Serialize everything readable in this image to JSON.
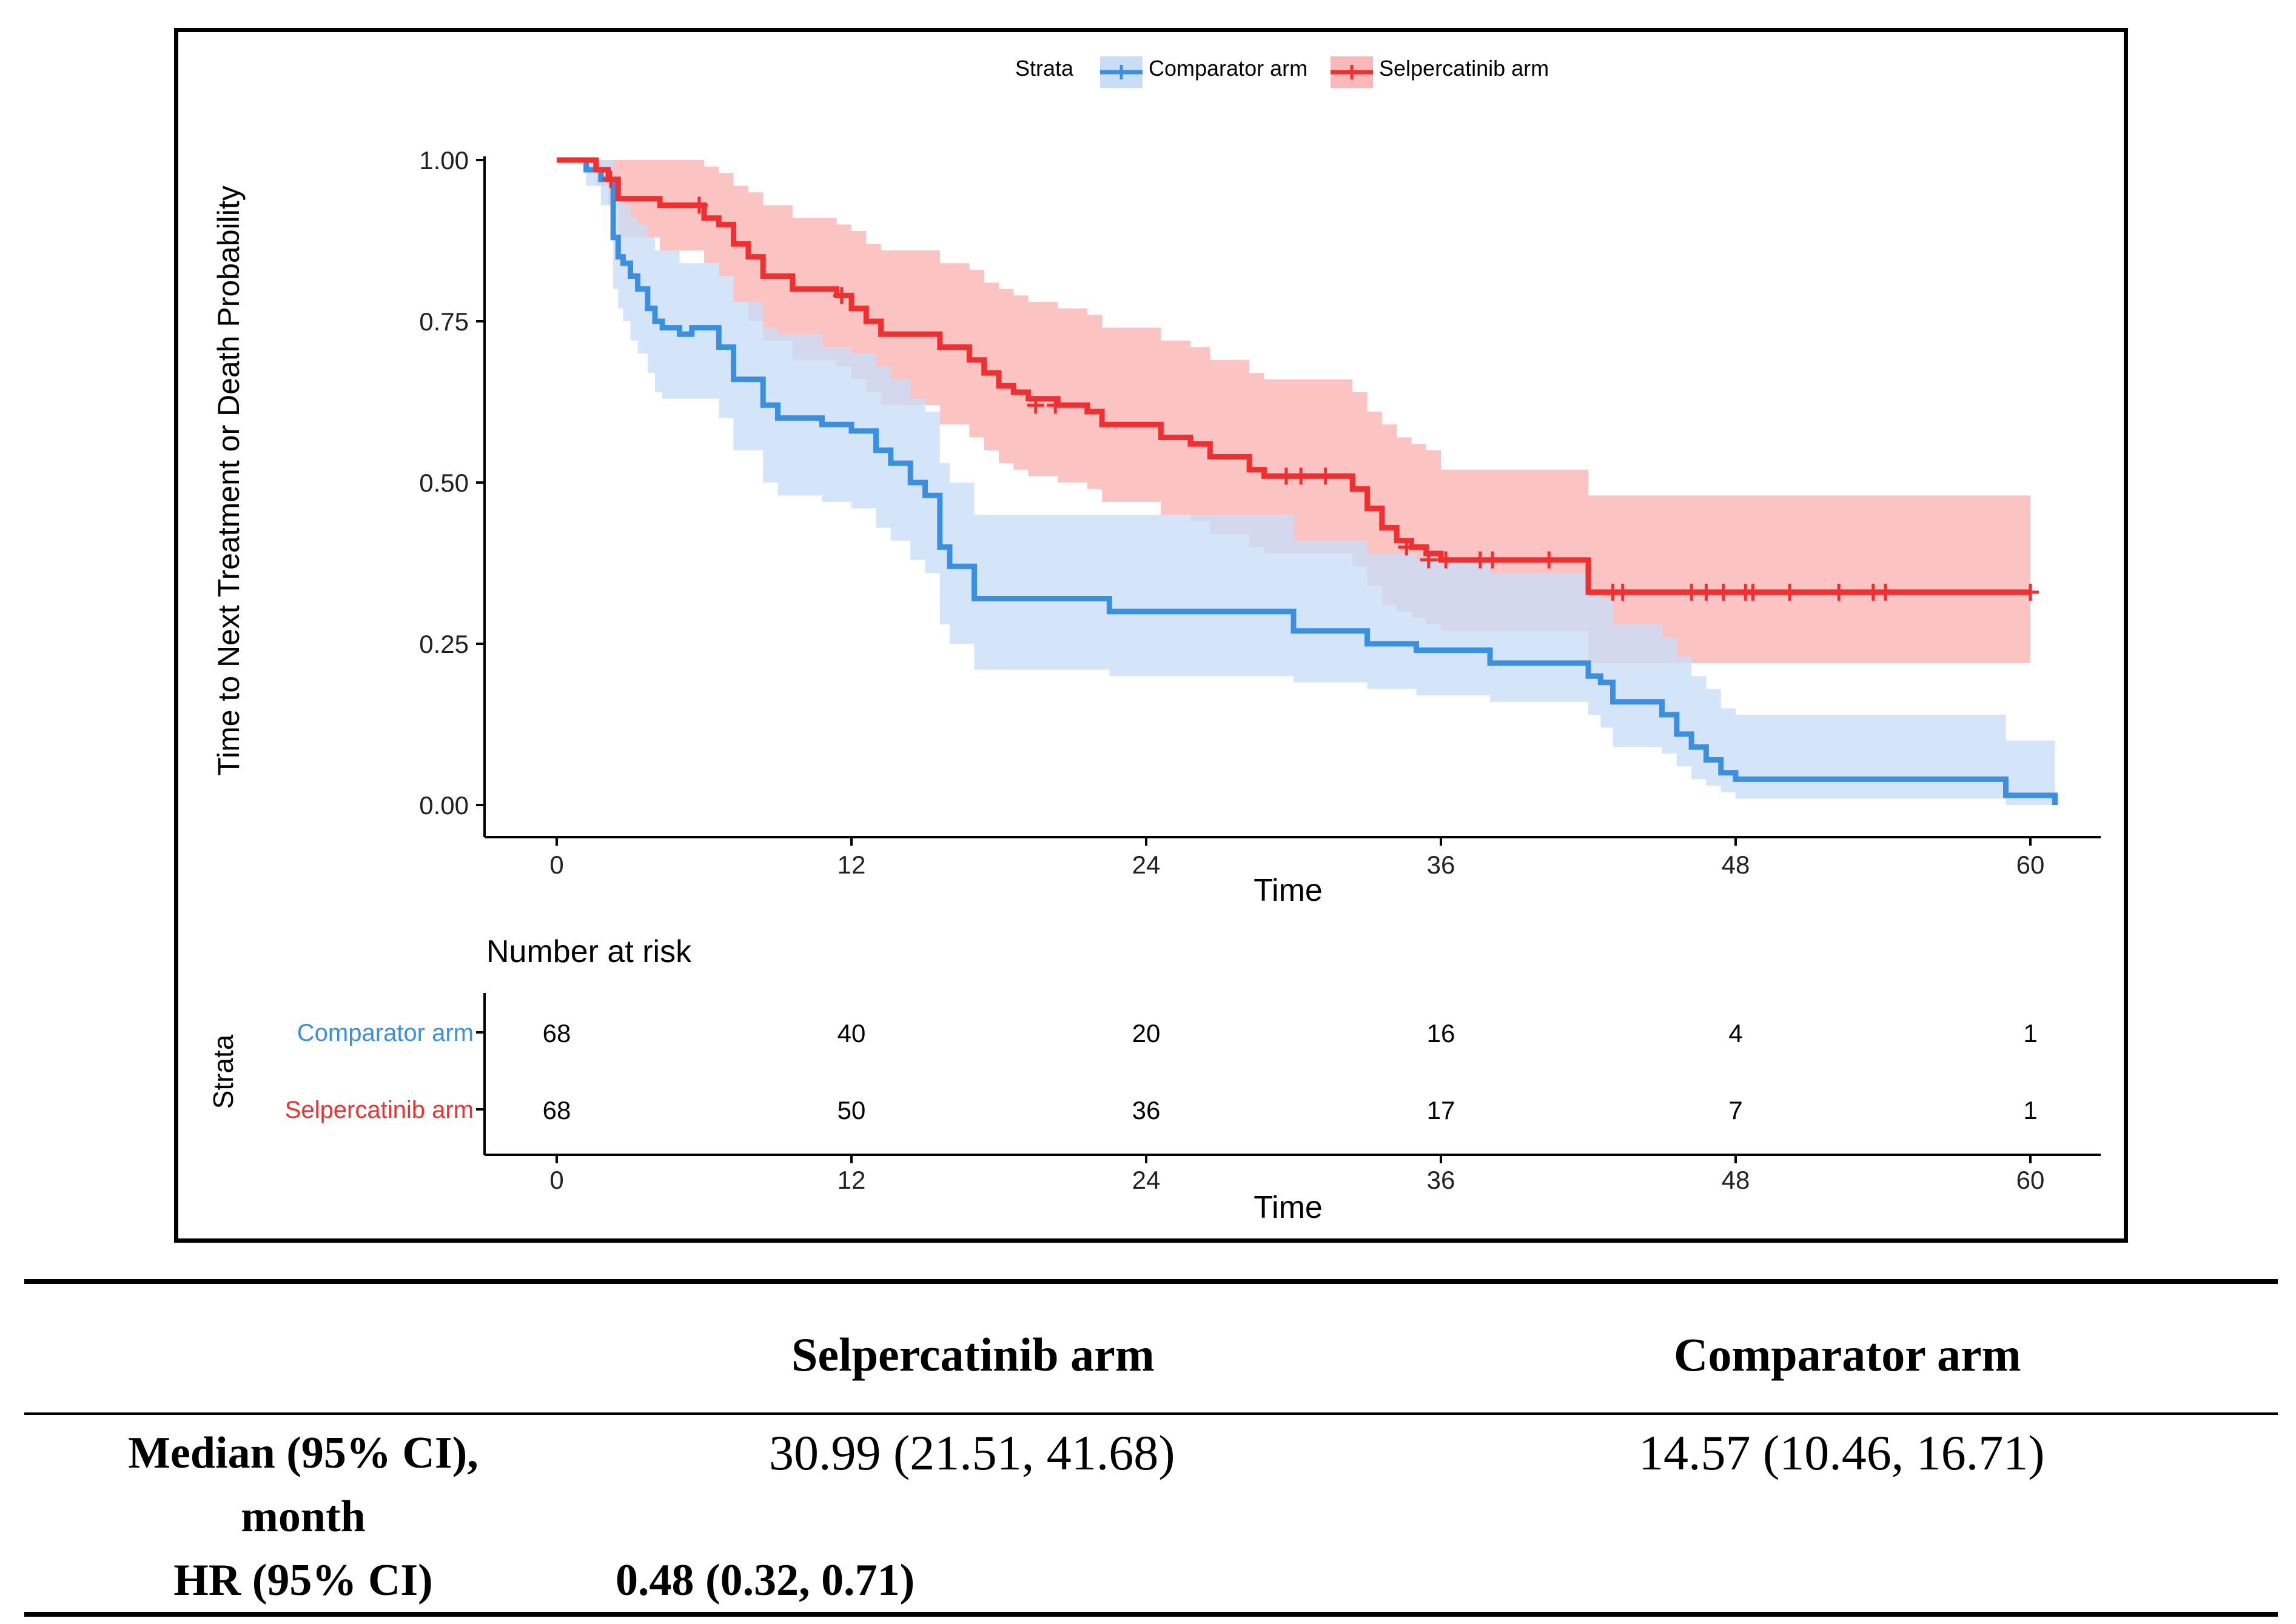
{
  "chart_data": {
    "type": "line",
    "subtype": "kaplan-meier",
    "legend": {
      "title": "Strata",
      "placement": "top-center",
      "entries": [
        "Comparator arm",
        "Selpercatinib arm"
      ]
    },
    "ylabel": "Time to Next Treatment or Death Probability",
    "xlabel": "Time",
    "xlim": [
      0,
      61
    ],
    "ylim": [
      0,
      1
    ],
    "x_ticks": [
      "0",
      "12",
      "24",
      "36",
      "48",
      "60"
    ],
    "x_tick_values": [
      0,
      12,
      24,
      36,
      48,
      60
    ],
    "y_ticks": [
      "0.00",
      "0.25",
      "0.50",
      "0.75",
      "1.00"
    ],
    "y_tick_values": [
      0,
      0.25,
      0.5,
      0.75,
      1.0
    ],
    "colors": {
      "comparator": "#3b8fe0",
      "selpercatinib": "#f03030",
      "comparator_band": "#c9ddf7",
      "selpercatinib_band": "#fbb8b8"
    },
    "series": [
      {
        "name": "Comparator arm",
        "x": [
          0,
          1.2,
          1.8,
          2.3,
          2.5,
          2.7,
          3.0,
          3.3,
          3.7,
          4.0,
          4.3,
          5.0,
          5.5,
          6.6,
          7.2,
          8.4,
          9.0,
          10.8,
          12.0,
          13.0,
          13.6,
          14.4,
          15.0,
          15.6,
          16.0,
          17.0,
          22.5,
          30.0,
          33.0,
          35.0,
          38.0,
          42.0,
          42.5,
          43.0,
          45.0,
          45.6,
          46.2,
          46.8,
          47.4,
          48.0,
          59.0,
          61.0
        ],
        "y": [
          1.0,
          0.985,
          0.97,
          0.88,
          0.85,
          0.84,
          0.82,
          0.8,
          0.77,
          0.75,
          0.74,
          0.73,
          0.74,
          0.71,
          0.66,
          0.62,
          0.6,
          0.59,
          0.58,
          0.55,
          0.53,
          0.5,
          0.48,
          0.4,
          0.37,
          0.32,
          0.3,
          0.27,
          0.25,
          0.24,
          0.22,
          0.2,
          0.19,
          0.16,
          0.14,
          0.11,
          0.09,
          0.07,
          0.05,
          0.04,
          0.015,
          0.0
        ],
        "ci_upper": [
          1.0,
          1.0,
          1.0,
          0.96,
          0.94,
          0.93,
          0.91,
          0.9,
          0.88,
          0.86,
          0.86,
          0.84,
          0.84,
          0.82,
          0.78,
          0.74,
          0.73,
          0.71,
          0.7,
          0.68,
          0.66,
          0.63,
          0.61,
          0.53,
          0.5,
          0.45,
          0.45,
          0.41,
          0.39,
          0.38,
          0.36,
          0.33,
          0.32,
          0.28,
          0.26,
          0.23,
          0.2,
          0.18,
          0.15,
          0.14,
          0.1,
          0.1
        ],
        "ci_lower": [
          1.0,
          0.96,
          0.93,
          0.8,
          0.77,
          0.75,
          0.72,
          0.7,
          0.67,
          0.64,
          0.63,
          0.63,
          0.63,
          0.6,
          0.55,
          0.5,
          0.48,
          0.47,
          0.46,
          0.43,
          0.41,
          0.38,
          0.36,
          0.28,
          0.25,
          0.21,
          0.2,
          0.19,
          0.18,
          0.17,
          0.16,
          0.14,
          0.12,
          0.09,
          0.08,
          0.06,
          0.04,
          0.03,
          0.02,
          0.01,
          0.0,
          0.0
        ]
      },
      {
        "name": "Selpercatinib arm",
        "x": [
          0,
          1.6,
          2.1,
          2.5,
          4.2,
          6.0,
          6.6,
          7.2,
          7.8,
          8.4,
          9.6,
          11.4,
          12.0,
          12.6,
          13.2,
          15.6,
          16.8,
          17.4,
          18.0,
          18.6,
          19.2,
          20.4,
          21.6,
          22.2,
          24.6,
          25.8,
          26.6,
          28.2,
          28.8,
          32.4,
          33.0,
          33.6,
          34.2,
          34.8,
          35.4,
          36.0,
          41.7,
          42.0,
          60.0
        ],
        "y": [
          1.0,
          0.985,
          0.97,
          0.94,
          0.93,
          0.91,
          0.9,
          0.87,
          0.85,
          0.82,
          0.8,
          0.79,
          0.77,
          0.75,
          0.73,
          0.71,
          0.69,
          0.67,
          0.65,
          0.64,
          0.63,
          0.62,
          0.61,
          0.59,
          0.57,
          0.56,
          0.54,
          0.52,
          0.51,
          0.49,
          0.46,
          0.43,
          0.41,
          0.4,
          0.39,
          0.38,
          0.38,
          0.33,
          0.33
        ],
        "ci_upper": [
          1.0,
          1.0,
          1.0,
          1.0,
          1.0,
          0.99,
          0.98,
          0.96,
          0.95,
          0.93,
          0.91,
          0.9,
          0.89,
          0.87,
          0.86,
          0.84,
          0.83,
          0.81,
          0.8,
          0.79,
          0.78,
          0.77,
          0.76,
          0.74,
          0.72,
          0.71,
          0.69,
          0.67,
          0.66,
          0.64,
          0.61,
          0.59,
          0.57,
          0.56,
          0.55,
          0.52,
          0.52,
          0.48,
          0.48
        ],
        "ci_lower": [
          1.0,
          0.96,
          0.93,
          0.88,
          0.86,
          0.84,
          0.82,
          0.78,
          0.75,
          0.72,
          0.69,
          0.68,
          0.66,
          0.64,
          0.62,
          0.59,
          0.57,
          0.55,
          0.53,
          0.52,
          0.51,
          0.5,
          0.49,
          0.47,
          0.45,
          0.44,
          0.42,
          0.4,
          0.39,
          0.37,
          0.34,
          0.31,
          0.3,
          0.29,
          0.28,
          0.27,
          0.27,
          0.22,
          0.22
        ]
      }
    ],
    "censor_marks": {
      "Selpercatinib arm": [
        [
          2.2,
          0.97
        ],
        [
          5.8,
          0.93
        ],
        [
          11.6,
          0.79
        ],
        [
          19.5,
          0.62
        ],
        [
          20.3,
          0.62
        ],
        [
          29.7,
          0.51
        ],
        [
          30.3,
          0.51
        ],
        [
          31.3,
          0.51
        ],
        [
          34.6,
          0.4
        ],
        [
          35.5,
          0.38
        ],
        [
          36.2,
          0.38
        ],
        [
          37.6,
          0.38
        ],
        [
          38.1,
          0.38
        ],
        [
          40.4,
          0.38
        ],
        [
          43.0,
          0.33
        ],
        [
          43.4,
          0.33
        ],
        [
          46.2,
          0.33
        ],
        [
          46.8,
          0.33
        ],
        [
          47.5,
          0.33
        ],
        [
          48.4,
          0.33
        ],
        [
          48.7,
          0.33
        ],
        [
          50.2,
          0.33
        ],
        [
          52.2,
          0.33
        ],
        [
          53.6,
          0.33
        ],
        [
          54.1,
          0.33
        ],
        [
          60.0,
          0.33
        ]
      ]
    },
    "risk_table": {
      "title": "Number at risk",
      "strata_label": "Strata",
      "xlabel": "Time",
      "rows": [
        {
          "name": "Comparator arm",
          "counts": [
            "68",
            "40",
            "20",
            "16",
            "4",
            "1"
          ]
        },
        {
          "name": "Selpercatinib arm",
          "counts": [
            "68",
            "50",
            "36",
            "17",
            "7",
            "1"
          ]
        }
      ]
    }
  },
  "summary_table": {
    "headers": [
      "Selpercatinib arm",
      "Comparator arm"
    ],
    "rows": [
      {
        "label_line1": "Median (95% CI),",
        "label_line2": "month",
        "selpercatinib": "30.99 (21.51, 41.68)",
        "comparator": "14.57 (10.46, 16.71)"
      },
      {
        "label_line1": "HR (95% CI)",
        "value": "0.48 (0.32, 0.71)"
      }
    ]
  }
}
